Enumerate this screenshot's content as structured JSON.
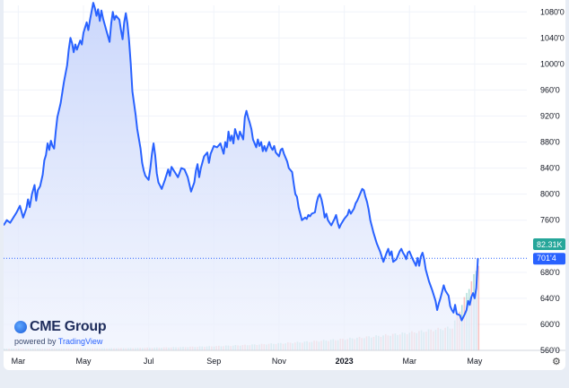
{
  "chart_data": {
    "type": "area",
    "brand": {
      "name": "CME Group",
      "powered_by": "powered by",
      "provider": "TradingView"
    },
    "y_ticks": [
      "1080'0",
      "1040'0",
      "1000'0",
      "960'0",
      "920'0",
      "880'0",
      "840'0",
      "800'0",
      "760'0",
      "680'0",
      "640'0",
      "600'0",
      "560'0"
    ],
    "ylim": [
      560,
      1090
    ],
    "x_ticks": [
      {
        "label": "Mar",
        "t": 0.0
      },
      {
        "label": "May",
        "t": 2.0
      },
      {
        "label": "Jul",
        "t": 4.0
      },
      {
        "label": "Sep",
        "t": 6.0
      },
      {
        "label": "Nov",
        "t": 8.0
      },
      {
        "label": "2023",
        "t": 10.0,
        "bold": true
      },
      {
        "label": "Mar",
        "t": 12.0
      },
      {
        "label": "May",
        "t": 14.0
      }
    ],
    "xlim": [
      -0.45,
      15.6
    ],
    "last_value_label": "701'4",
    "last_value": 701.5,
    "volume_label": "82.31K",
    "line_color": "#2962ff",
    "fill_color": "#d9e2fb",
    "series": [
      {
        "values": [
          [
            -0.45,
            752
          ],
          [
            -0.35,
            760
          ],
          [
            -0.25,
            756
          ],
          [
            -0.15,
            764
          ],
          [
            -0.05,
            772
          ],
          [
            0.05,
            782
          ],
          [
            0.15,
            764
          ],
          [
            0.25,
            778
          ],
          [
            0.3,
            792
          ],
          [
            0.35,
            780
          ],
          [
            0.42,
            800
          ],
          [
            0.5,
            814
          ],
          [
            0.55,
            790
          ],
          [
            0.6,
            806
          ],
          [
            0.67,
            812
          ],
          [
            0.75,
            830
          ],
          [
            0.8,
            852
          ],
          [
            0.85,
            860
          ],
          [
            0.9,
            878
          ],
          [
            0.95,
            868
          ],
          [
            1.0,
            882
          ],
          [
            1.05,
            874
          ],
          [
            1.1,
            870
          ],
          [
            1.15,
            896
          ],
          [
            1.2,
            918
          ],
          [
            1.3,
            940
          ],
          [
            1.4,
            972
          ],
          [
            1.5,
            998
          ],
          [
            1.55,
            1022
          ],
          [
            1.6,
            1040
          ],
          [
            1.65,
            1032
          ],
          [
            1.7,
            1018
          ],
          [
            1.75,
            1030
          ],
          [
            1.8,
            1022
          ],
          [
            1.9,
            1036
          ],
          [
            1.95,
            1030
          ],
          [
            2.0,
            1048
          ],
          [
            2.1,
            1064
          ],
          [
            2.15,
            1052
          ],
          [
            2.2,
            1068
          ],
          [
            2.3,
            1094
          ],
          [
            2.35,
            1086
          ],
          [
            2.4,
            1074
          ],
          [
            2.45,
            1084
          ],
          [
            2.5,
            1066
          ],
          [
            2.55,
            1082
          ],
          [
            2.6,
            1070
          ],
          [
            2.7,
            1052
          ],
          [
            2.8,
            1034
          ],
          [
            2.85,
            1062
          ],
          [
            2.9,
            1080
          ],
          [
            2.95,
            1068
          ],
          [
            3.0,
            1074
          ],
          [
            3.1,
            1068
          ],
          [
            3.15,
            1052
          ],
          [
            3.2,
            1038
          ],
          [
            3.25,
            1064
          ],
          [
            3.3,
            1078
          ],
          [
            3.35,
            1062
          ],
          [
            3.4,
            1036
          ],
          [
            3.45,
            1000
          ],
          [
            3.5,
            958
          ],
          [
            3.55,
            940
          ],
          [
            3.6,
            922
          ],
          [
            3.65,
            900
          ],
          [
            3.75,
            870
          ],
          [
            3.8,
            848
          ],
          [
            3.85,
            836
          ],
          [
            3.9,
            828
          ],
          [
            4.0,
            822
          ],
          [
            4.05,
            840
          ],
          [
            4.1,
            862
          ],
          [
            4.15,
            878
          ],
          [
            4.2,
            860
          ],
          [
            4.25,
            832
          ],
          [
            4.3,
            818
          ],
          [
            4.4,
            808
          ],
          [
            4.5,
            822
          ],
          [
            4.6,
            838
          ],
          [
            4.65,
            828
          ],
          [
            4.7,
            842
          ],
          [
            4.8,
            834
          ],
          [
            4.9,
            826
          ],
          [
            5.0,
            840
          ],
          [
            5.1,
            838
          ],
          [
            5.2,
            826
          ],
          [
            5.3,
            804
          ],
          [
            5.4,
            818
          ],
          [
            5.45,
            836
          ],
          [
            5.5,
            846
          ],
          [
            5.55,
            826
          ],
          [
            5.6,
            840
          ],
          [
            5.7,
            858
          ],
          [
            5.8,
            864
          ],
          [
            5.85,
            848
          ],
          [
            5.9,
            862
          ],
          [
            6.0,
            874
          ],
          [
            6.1,
            872
          ],
          [
            6.2,
            878
          ],
          [
            6.3,
            862
          ],
          [
            6.35,
            880
          ],
          [
            6.4,
            872
          ],
          [
            6.45,
            896
          ],
          [
            6.5,
            882
          ],
          [
            6.55,
            890
          ],
          [
            6.6,
            878
          ],
          [
            6.65,
            900
          ],
          [
            6.7,
            892
          ],
          [
            6.75,
            884
          ],
          [
            6.8,
            896
          ],
          [
            6.9,
            884
          ],
          [
            6.95,
            918
          ],
          [
            7.0,
            928
          ],
          [
            7.05,
            918
          ],
          [
            7.1,
            910
          ],
          [
            7.15,
            900
          ],
          [
            7.2,
            884
          ],
          [
            7.3,
            872
          ],
          [
            7.35,
            884
          ],
          [
            7.4,
            874
          ],
          [
            7.45,
            880
          ],
          [
            7.5,
            866
          ],
          [
            7.55,
            874
          ],
          [
            7.6,
            866
          ],
          [
            7.7,
            880
          ],
          [
            7.75,
            872
          ],
          [
            7.8,
            868
          ],
          [
            7.85,
            874
          ],
          [
            7.9,
            864
          ],
          [
            8.0,
            858
          ],
          [
            8.05,
            868
          ],
          [
            8.1,
            870
          ],
          [
            8.15,
            862
          ],
          [
            8.25,
            850
          ],
          [
            8.3,
            840
          ],
          [
            8.4,
            834
          ],
          [
            8.45,
            816
          ],
          [
            8.5,
            800
          ],
          [
            8.55,
            796
          ],
          [
            8.6,
            780
          ],
          [
            8.7,
            760
          ],
          [
            8.8,
            764
          ],
          [
            8.85,
            762
          ],
          [
            8.9,
            768
          ],
          [
            8.95,
            766
          ],
          [
            9.0,
            770
          ],
          [
            9.1,
            772
          ],
          [
            9.15,
            786
          ],
          [
            9.2,
            796
          ],
          [
            9.25,
            800
          ],
          [
            9.3,
            792
          ],
          [
            9.35,
            780
          ],
          [
            9.4,
            764
          ],
          [
            9.45,
            770
          ],
          [
            9.5,
            760
          ],
          [
            9.6,
            752
          ],
          [
            9.7,
            762
          ],
          [
            9.75,
            768
          ],
          [
            9.8,
            756
          ],
          [
            9.85,
            748
          ],
          [
            9.9,
            754
          ],
          [
            10.0,
            762
          ],
          [
            10.1,
            768
          ],
          [
            10.15,
            776
          ],
          [
            10.2,
            770
          ],
          [
            10.3,
            778
          ],
          [
            10.35,
            786
          ],
          [
            10.4,
            790
          ],
          [
            10.5,
            802
          ],
          [
            10.55,
            808
          ],
          [
            10.6,
            806
          ],
          [
            10.65,
            796
          ],
          [
            10.7,
            788
          ],
          [
            10.75,
            776
          ],
          [
            10.8,
            760
          ],
          [
            10.9,
            740
          ],
          [
            11.0,
            724
          ],
          [
            11.1,
            712
          ],
          [
            11.2,
            696
          ],
          [
            11.3,
            710
          ],
          [
            11.35,
            716
          ],
          [
            11.4,
            706
          ],
          [
            11.45,
            712
          ],
          [
            11.5,
            696
          ],
          [
            11.6,
            700
          ],
          [
            11.7,
            712
          ],
          [
            11.75,
            716
          ],
          [
            11.8,
            710
          ],
          [
            11.85,
            706
          ],
          [
            11.9,
            700
          ],
          [
            11.95,
            710
          ],
          [
            12.0,
            712
          ],
          [
            12.05,
            706
          ],
          [
            12.1,
            700
          ],
          [
            12.2,
            690
          ],
          [
            12.25,
            702
          ],
          [
            12.3,
            690
          ],
          [
            12.35,
            704
          ],
          [
            12.4,
            710
          ],
          [
            12.45,
            700
          ],
          [
            12.5,
            684
          ],
          [
            12.6,
            666
          ],
          [
            12.7,
            652
          ],
          [
            12.8,
            636
          ],
          [
            12.85,
            622
          ],
          [
            12.9,
            632
          ],
          [
            12.95,
            640
          ],
          [
            13.0,
            650
          ],
          [
            13.05,
            660
          ],
          [
            13.1,
            652
          ],
          [
            13.2,
            644
          ],
          [
            13.25,
            628
          ],
          [
            13.3,
            622
          ],
          [
            13.35,
            618
          ],
          [
            13.4,
            630
          ],
          [
            13.45,
            616
          ],
          [
            13.55,
            614
          ],
          [
            13.6,
            606
          ],
          [
            13.7,
            616
          ],
          [
            13.75,
            622
          ],
          [
            13.8,
            636
          ],
          [
            13.85,
            630
          ],
          [
            13.9,
            642
          ],
          [
            13.95,
            648
          ],
          [
            14.0,
            640
          ],
          [
            14.05,
            656
          ],
          [
            14.1,
            701.5
          ]
        ]
      }
    ]
  }
}
